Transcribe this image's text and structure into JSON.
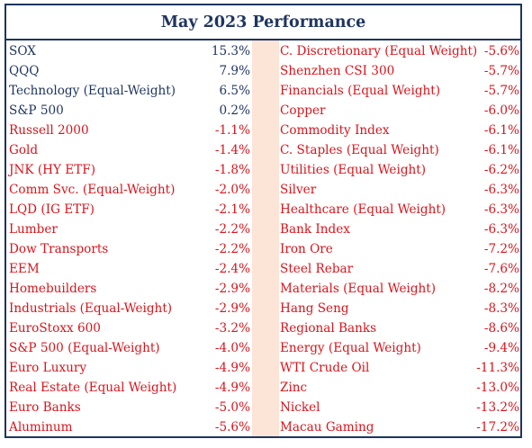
{
  "title": "May 2023 Performance",
  "colors": {
    "positive": "#1f3560",
    "negative": "#d9141b",
    "border": "#1f3560",
    "spacer": "#fce4d6"
  },
  "left_column": [
    {
      "name": "SOX",
      "value": "15.3%",
      "sign": "pos"
    },
    {
      "name": "QQQ",
      "value": "7.9%",
      "sign": "pos"
    },
    {
      "name": "Technology (Equal-Weight)",
      "value": "6.5%",
      "sign": "pos"
    },
    {
      "name": "S&P 500",
      "value": "0.2%",
      "sign": "pos"
    },
    {
      "name": "Russell 2000",
      "value": "-1.1%",
      "sign": "neg"
    },
    {
      "name": "Gold",
      "value": "-1.4%",
      "sign": "neg"
    },
    {
      "name": "JNK (HY ETF)",
      "value": "-1.8%",
      "sign": "neg"
    },
    {
      "name": "Comm Svc. (Equal-Weight)",
      "value": "-2.0%",
      "sign": "neg"
    },
    {
      "name": "LQD (IG ETF)",
      "value": "-2.1%",
      "sign": "neg"
    },
    {
      "name": "Lumber",
      "value": "-2.2%",
      "sign": "neg"
    },
    {
      "name": "Dow Transports",
      "value": "-2.2%",
      "sign": "neg"
    },
    {
      "name": "EEM",
      "value": "-2.4%",
      "sign": "neg"
    },
    {
      "name": "Homebuilders",
      "value": "-2.9%",
      "sign": "neg"
    },
    {
      "name": "Industrials (Equal-Weight)",
      "value": "-2.9%",
      "sign": "neg"
    },
    {
      "name": "EuroStoxx 600",
      "value": "-3.2%",
      "sign": "neg"
    },
    {
      "name": "S&P 500 (Equal-Weight)",
      "value": "-4.0%",
      "sign": "neg"
    },
    {
      "name": "Euro Luxury",
      "value": "-4.9%",
      "sign": "neg"
    },
    {
      "name": "Real Estate (Equal Weight)",
      "value": "-4.9%",
      "sign": "neg"
    },
    {
      "name": "Euro Banks",
      "value": "-5.0%",
      "sign": "neg"
    },
    {
      "name": "Aluminum",
      "value": "-5.6%",
      "sign": "neg"
    }
  ],
  "right_column": [
    {
      "name": "C. Discretionary (Equal Weight)",
      "value": "-5.6%",
      "sign": "neg"
    },
    {
      "name": "Shenzhen CSI 300",
      "value": "-5.7%",
      "sign": "neg"
    },
    {
      "name": "Financials (Equal Weight)",
      "value": "-5.7%",
      "sign": "neg"
    },
    {
      "name": "Copper",
      "value": "-6.0%",
      "sign": "neg"
    },
    {
      "name": "Commodity Index",
      "value": "-6.1%",
      "sign": "neg"
    },
    {
      "name": "C. Staples (Equal Weight)",
      "value": "-6.1%",
      "sign": "neg"
    },
    {
      "name": "Utilities (Equal Weight)",
      "value": "-6.2%",
      "sign": "neg"
    },
    {
      "name": "Silver",
      "value": "-6.3%",
      "sign": "neg"
    },
    {
      "name": "Healthcare (Equal Weight)",
      "value": "-6.3%",
      "sign": "neg"
    },
    {
      "name": "Bank Index",
      "value": "-6.3%",
      "sign": "neg"
    },
    {
      "name": "Iron Ore",
      "value": "-7.2%",
      "sign": "neg"
    },
    {
      "name": "Steel Rebar",
      "value": "-7.6%",
      "sign": "neg"
    },
    {
      "name": "Materials (Equal Weight)",
      "value": "-8.2%",
      "sign": "neg"
    },
    {
      "name": "Hang Seng",
      "value": "-8.3%",
      "sign": "neg"
    },
    {
      "name": "Regional Banks",
      "value": "-8.6%",
      "sign": "neg"
    },
    {
      "name": "Energy (Equal Weight)",
      "value": "-9.4%",
      "sign": "neg"
    },
    {
      "name": "WTI Crude Oil",
      "value": "-11.3%",
      "sign": "neg"
    },
    {
      "name": "Zinc",
      "value": "-13.0%",
      "sign": "neg"
    },
    {
      "name": "Nickel",
      "value": "-13.2%",
      "sign": "neg"
    },
    {
      "name": "Macau Gaming",
      "value": "-17.2%",
      "sign": "neg"
    }
  ]
}
